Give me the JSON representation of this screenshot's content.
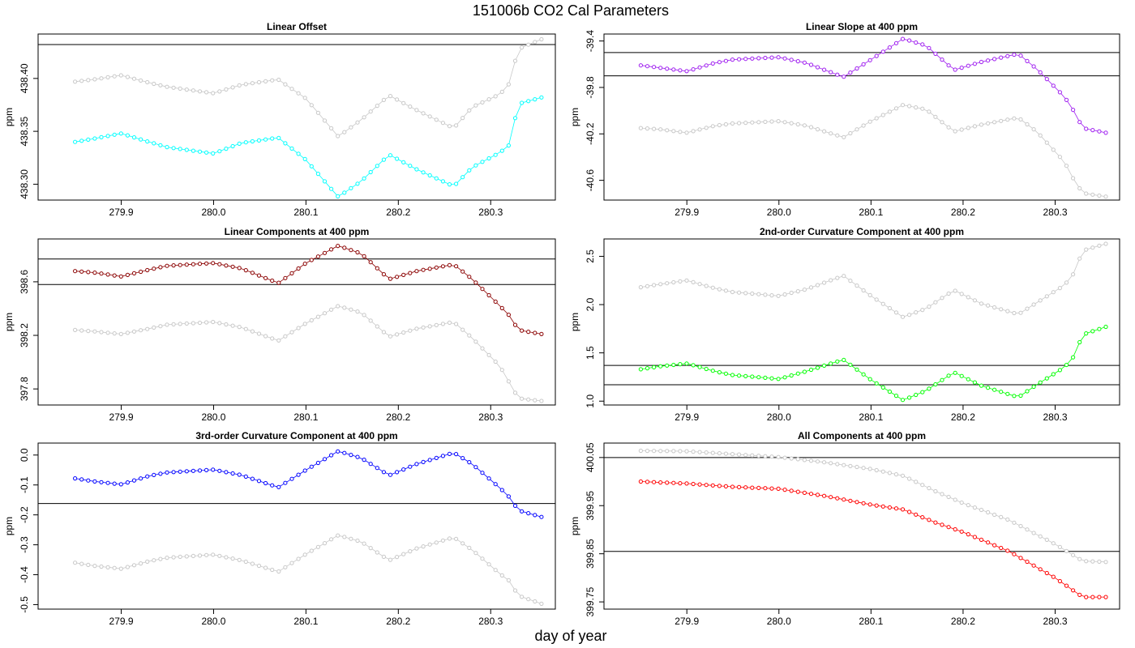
{
  "figure": {
    "title": "151006b   CO2 Cal Parameters",
    "xlabel": "day of year"
  },
  "colors": {
    "reference": "#c8c8c8",
    "line": "#000000"
  },
  "chart_data": [
    {
      "type": "line",
      "title": "Linear Offset",
      "ylabel": "ppm",
      "xlim": [
        279.81,
        280.37
      ],
      "ylim": [
        438.285,
        438.442
      ],
      "xticks": [
        279.9,
        280.0,
        280.1,
        280.2,
        280.3
      ],
      "xtick_labels": [
        "279.9",
        "280.0",
        "280.1",
        "280.2",
        "280.3"
      ],
      "yticks": [
        438.3,
        438.35,
        438.4
      ],
      "ytick_labels": [
        "438.30",
        "438.35",
        "438.40"
      ],
      "hlines": [
        438.432
      ],
      "color": "#00ffff",
      "ref_anchors": [
        [
          279.85,
          438.397
        ],
        [
          279.87,
          438.399
        ],
        [
          279.9,
          438.403
        ],
        [
          279.93,
          438.396
        ],
        [
          279.95,
          438.392
        ],
        [
          280.0,
          438.386
        ],
        [
          280.03,
          438.394
        ],
        [
          280.07,
          438.399
        ],
        [
          280.1,
          438.381
        ],
        [
          280.135,
          438.345
        ],
        [
          280.16,
          438.361
        ],
        [
          280.19,
          438.384
        ],
        [
          280.22,
          438.37
        ],
        [
          280.26,
          438.353
        ],
        [
          280.28,
          438.373
        ],
        [
          280.31,
          438.385
        ],
        [
          280.32,
          438.395
        ],
        [
          280.33,
          438.428
        ],
        [
          280.355,
          438.437
        ]
      ],
      "series_anchors": [
        [
          279.85,
          438.34
        ],
        [
          279.87,
          438.343
        ],
        [
          279.9,
          438.348
        ],
        [
          279.93,
          438.34
        ],
        [
          279.95,
          438.335
        ],
        [
          280.0,
          438.329
        ],
        [
          280.03,
          438.339
        ],
        [
          280.07,
          438.344
        ],
        [
          280.1,
          438.323
        ],
        [
          280.135,
          438.288
        ],
        [
          280.16,
          438.303
        ],
        [
          280.19,
          438.328
        ],
        [
          280.22,
          438.314
        ],
        [
          280.26,
          438.298
        ],
        [
          280.28,
          438.316
        ],
        [
          280.31,
          438.33
        ],
        [
          280.32,
          438.337
        ],
        [
          280.33,
          438.376
        ],
        [
          280.355,
          438.382
        ]
      ]
    },
    {
      "type": "line",
      "title": "Linear Slope at 400 ppm",
      "ylabel": "ppm",
      "xlim": [
        279.81,
        280.37
      ],
      "ylim": [
        -40.77,
        -39.34
      ],
      "xticks": [
        279.9,
        280.0,
        280.1,
        280.2,
        280.3
      ],
      "xtick_labels": [
        "279.9",
        "280.0",
        "280.1",
        "280.2",
        "280.3"
      ],
      "yticks": [
        -40.6,
        -40.2,
        -39.8,
        -39.4
      ],
      "ytick_labels": [
        "-40.6",
        "-40.2",
        "-39.8",
        "-39.4"
      ],
      "hlines": [
        -39.5,
        -39.7
      ],
      "color": "#a020f0",
      "ref_anchors": [
        [
          279.85,
          -40.15
        ],
        [
          279.87,
          -40.16
        ],
        [
          279.9,
          -40.19
        ],
        [
          279.93,
          -40.13
        ],
        [
          279.95,
          -40.11
        ],
        [
          280.0,
          -40.09
        ],
        [
          280.03,
          -40.13
        ],
        [
          280.07,
          -40.23
        ],
        [
          280.1,
          -40.09
        ],
        [
          280.135,
          -39.95
        ],
        [
          280.16,
          -39.99
        ],
        [
          280.19,
          -40.18
        ],
        [
          280.22,
          -40.12
        ],
        [
          280.26,
          -40.06
        ],
        [
          280.28,
          -40.18
        ],
        [
          280.31,
          -40.44
        ],
        [
          280.32,
          -40.59
        ],
        [
          280.33,
          -40.71
        ],
        [
          280.355,
          -40.74
        ]
      ],
      "series_anchors": [
        [
          279.85,
          -39.61
        ],
        [
          279.87,
          -39.63
        ],
        [
          279.9,
          -39.66
        ],
        [
          279.93,
          -39.59
        ],
        [
          279.95,
          -39.56
        ],
        [
          280.0,
          -39.54
        ],
        [
          280.03,
          -39.59
        ],
        [
          280.07,
          -39.71
        ],
        [
          280.1,
          -39.56
        ],
        [
          280.135,
          -39.38
        ],
        [
          280.16,
          -39.44
        ],
        [
          280.19,
          -39.65
        ],
        [
          280.22,
          -39.58
        ],
        [
          280.26,
          -39.51
        ],
        [
          280.28,
          -39.64
        ],
        [
          280.31,
          -39.88
        ],
        [
          280.32,
          -40.0
        ],
        [
          280.33,
          -40.15
        ],
        [
          280.355,
          -40.19
        ]
      ]
    },
    {
      "type": "line",
      "title": "Linear Components at 400 ppm",
      "ylabel": "ppm",
      "xlim": [
        279.81,
        280.37
      ],
      "ylim": [
        397.68,
        398.92
      ],
      "xticks": [
        279.9,
        280.0,
        280.1,
        280.2,
        280.3
      ],
      "xtick_labels": [
        "279.9",
        "280.0",
        "280.1",
        "280.2",
        "280.3"
      ],
      "yticks": [
        397.8,
        398.2,
        398.6
      ],
      "ytick_labels": [
        "397.8",
        "398.2",
        "398.6"
      ],
      "hlines": [
        398.77,
        398.58
      ],
      "color": "#8b0000",
      "ref_anchors": [
        [
          279.85,
          398.24
        ],
        [
          279.87,
          398.23
        ],
        [
          279.9,
          398.21
        ],
        [
          279.93,
          398.25
        ],
        [
          279.95,
          398.28
        ],
        [
          280.0,
          398.3
        ],
        [
          280.03,
          398.26
        ],
        [
          280.07,
          398.16
        ],
        [
          280.1,
          398.29
        ],
        [
          280.135,
          398.42
        ],
        [
          280.16,
          398.37
        ],
        [
          280.19,
          398.19
        ],
        [
          280.22,
          398.25
        ],
        [
          280.26,
          398.3
        ],
        [
          280.28,
          398.18
        ],
        [
          280.31,
          397.97
        ],
        [
          280.32,
          397.85
        ],
        [
          280.33,
          397.73
        ],
        [
          280.355,
          397.71
        ]
      ],
      "series_anchors": [
        [
          279.85,
          398.68
        ],
        [
          279.87,
          398.67
        ],
        [
          279.9,
          398.64
        ],
        [
          279.93,
          398.69
        ],
        [
          279.95,
          398.72
        ],
        [
          280.0,
          398.74
        ],
        [
          280.03,
          398.7
        ],
        [
          280.07,
          398.59
        ],
        [
          280.1,
          398.74
        ],
        [
          280.135,
          398.87
        ],
        [
          280.16,
          398.81
        ],
        [
          280.19,
          398.62
        ],
        [
          280.22,
          398.68
        ],
        [
          280.26,
          398.73
        ],
        [
          280.28,
          398.62
        ],
        [
          280.31,
          398.42
        ],
        [
          280.32,
          398.35
        ],
        [
          280.33,
          398.24
        ],
        [
          280.355,
          398.21
        ]
      ]
    },
    {
      "type": "line",
      "title": "2nd-order Curvature Component at 400 ppm",
      "ylabel": "ppm",
      "xlim": [
        279.81,
        280.37
      ],
      "ylim": [
        0.96,
        2.68
      ],
      "xticks": [
        279.9,
        280.0,
        280.1,
        280.2,
        280.3
      ],
      "xtick_labels": [
        "279.9",
        "280.0",
        "280.1",
        "280.2",
        "280.3"
      ],
      "yticks": [
        1.0,
        1.5,
        2.0,
        2.5
      ],
      "ytick_labels": [
        "1.0",
        "1.5",
        "2.0",
        "2.5"
      ],
      "hlines": [
        1.37,
        1.17
      ],
      "color": "#00ff00",
      "ref_anchors": [
        [
          279.85,
          2.18
        ],
        [
          279.87,
          2.21
        ],
        [
          279.9,
          2.25
        ],
        [
          279.93,
          2.17
        ],
        [
          279.95,
          2.13
        ],
        [
          280.0,
          2.09
        ],
        [
          280.03,
          2.16
        ],
        [
          280.07,
          2.3
        ],
        [
          280.1,
          2.09
        ],
        [
          280.135,
          1.87
        ],
        [
          280.16,
          1.96
        ],
        [
          280.19,
          2.15
        ],
        [
          280.22,
          2.01
        ],
        [
          280.26,
          1.9
        ],
        [
          280.28,
          2.02
        ],
        [
          280.31,
          2.2
        ],
        [
          280.32,
          2.32
        ],
        [
          280.33,
          2.56
        ],
        [
          280.355,
          2.63
        ]
      ],
      "series_anchors": [
        [
          279.85,
          1.33
        ],
        [
          279.87,
          1.36
        ],
        [
          279.9,
          1.39
        ],
        [
          279.93,
          1.31
        ],
        [
          279.95,
          1.27
        ],
        [
          280.0,
          1.23
        ],
        [
          280.03,
          1.31
        ],
        [
          280.07,
          1.43
        ],
        [
          280.1,
          1.22
        ],
        [
          280.135,
          1.01
        ],
        [
          280.16,
          1.11
        ],
        [
          280.19,
          1.3
        ],
        [
          280.22,
          1.16
        ],
        [
          280.26,
          1.04
        ],
        [
          280.28,
          1.17
        ],
        [
          280.31,
          1.35
        ],
        [
          280.32,
          1.46
        ],
        [
          280.33,
          1.69
        ],
        [
          280.355,
          1.77
        ]
      ]
    },
    {
      "type": "line",
      "title": "3rd-order Curvature Component at 400 ppm",
      "ylabel": "ppm",
      "xlim": [
        279.81,
        280.37
      ],
      "ylim": [
        -0.515,
        0.04
      ],
      "xticks": [
        279.9,
        280.0,
        280.1,
        280.2,
        280.3
      ],
      "xtick_labels": [
        "279.9",
        "280.0",
        "280.1",
        "280.2",
        "280.3"
      ],
      "yticks": [
        -0.5,
        -0.4,
        -0.3,
        -0.2,
        -0.1,
        0.0
      ],
      "ytick_labels": [
        "-0.5",
        "-0.4",
        "-0.3",
        "-0.2",
        "-0.1",
        "0.0"
      ],
      "hlines": [
        -0.162
      ],
      "color": "#0000ff",
      "ref_anchors": [
        [
          279.85,
          -0.36
        ],
        [
          279.87,
          -0.37
        ],
        [
          279.9,
          -0.38
        ],
        [
          279.93,
          -0.355
        ],
        [
          279.95,
          -0.343
        ],
        [
          280.0,
          -0.333
        ],
        [
          280.03,
          -0.352
        ],
        [
          280.07,
          -0.39
        ],
        [
          280.1,
          -0.331
        ],
        [
          280.135,
          -0.268
        ],
        [
          280.16,
          -0.29
        ],
        [
          280.19,
          -0.352
        ],
        [
          280.22,
          -0.312
        ],
        [
          280.26,
          -0.275
        ],
        [
          280.28,
          -0.317
        ],
        [
          280.31,
          -0.397
        ],
        [
          280.32,
          -0.42
        ],
        [
          280.33,
          -0.47
        ],
        [
          280.355,
          -0.497
        ]
      ],
      "series_anchors": [
        [
          279.85,
          -0.078
        ],
        [
          279.87,
          -0.088
        ],
        [
          279.9,
          -0.098
        ],
        [
          279.93,
          -0.07
        ],
        [
          279.95,
          -0.058
        ],
        [
          280.0,
          -0.049
        ],
        [
          280.03,
          -0.067
        ],
        [
          280.07,
          -0.108
        ],
        [
          280.1,
          -0.05
        ],
        [
          280.135,
          0.013
        ],
        [
          280.16,
          -0.01
        ],
        [
          280.19,
          -0.068
        ],
        [
          280.22,
          -0.03
        ],
        [
          280.26,
          0.008
        ],
        [
          280.28,
          -0.03
        ],
        [
          280.31,
          -0.11
        ],
        [
          280.32,
          -0.14
        ],
        [
          280.33,
          -0.185
        ],
        [
          280.355,
          -0.207
        ]
      ]
    },
    {
      "type": "line",
      "title": "All Components at 400 ppm",
      "ylabel": "ppm",
      "xlim": [
        279.81,
        280.37
      ],
      "ylim": [
        399.735,
        400.08
      ],
      "xticks": [
        279.9,
        280.0,
        280.1,
        280.2,
        280.3
      ],
      "xtick_labels": [
        "279.9",
        "280.0",
        "280.1",
        "280.2",
        "280.3"
      ],
      "yticks": [
        399.75,
        399.85,
        399.95,
        400.05
      ],
      "ytick_labels": [
        "399.75",
        "399.85",
        "399.95",
        "400.05"
      ],
      "hlines": [
        400.05,
        399.855
      ],
      "color": "#ff0000",
      "ref_anchors": [
        [
          279.85,
          400.064
        ],
        [
          279.9,
          400.063
        ],
        [
          279.95,
          400.057
        ],
        [
          280.0,
          400.051
        ],
        [
          280.05,
          400.04
        ],
        [
          280.1,
          400.026
        ],
        [
          280.135,
          400.012
        ],
        [
          280.17,
          399.98
        ],
        [
          280.2,
          399.955
        ],
        [
          280.25,
          399.92
        ],
        [
          280.3,
          399.87
        ],
        [
          280.33,
          399.835
        ],
        [
          280.355,
          399.833
        ]
      ],
      "series_anchors": [
        [
          279.85,
          400.0
        ],
        [
          279.9,
          399.996
        ],
        [
          279.95,
          399.989
        ],
        [
          280.0,
          399.985
        ],
        [
          280.05,
          399.97
        ],
        [
          280.1,
          399.952
        ],
        [
          280.135,
          399.942
        ],
        [
          280.17,
          399.915
        ],
        [
          280.2,
          399.895
        ],
        [
          280.25,
          399.855
        ],
        [
          280.3,
          399.8
        ],
        [
          280.33,
          399.76
        ],
        [
          280.355,
          399.76
        ]
      ]
    }
  ]
}
